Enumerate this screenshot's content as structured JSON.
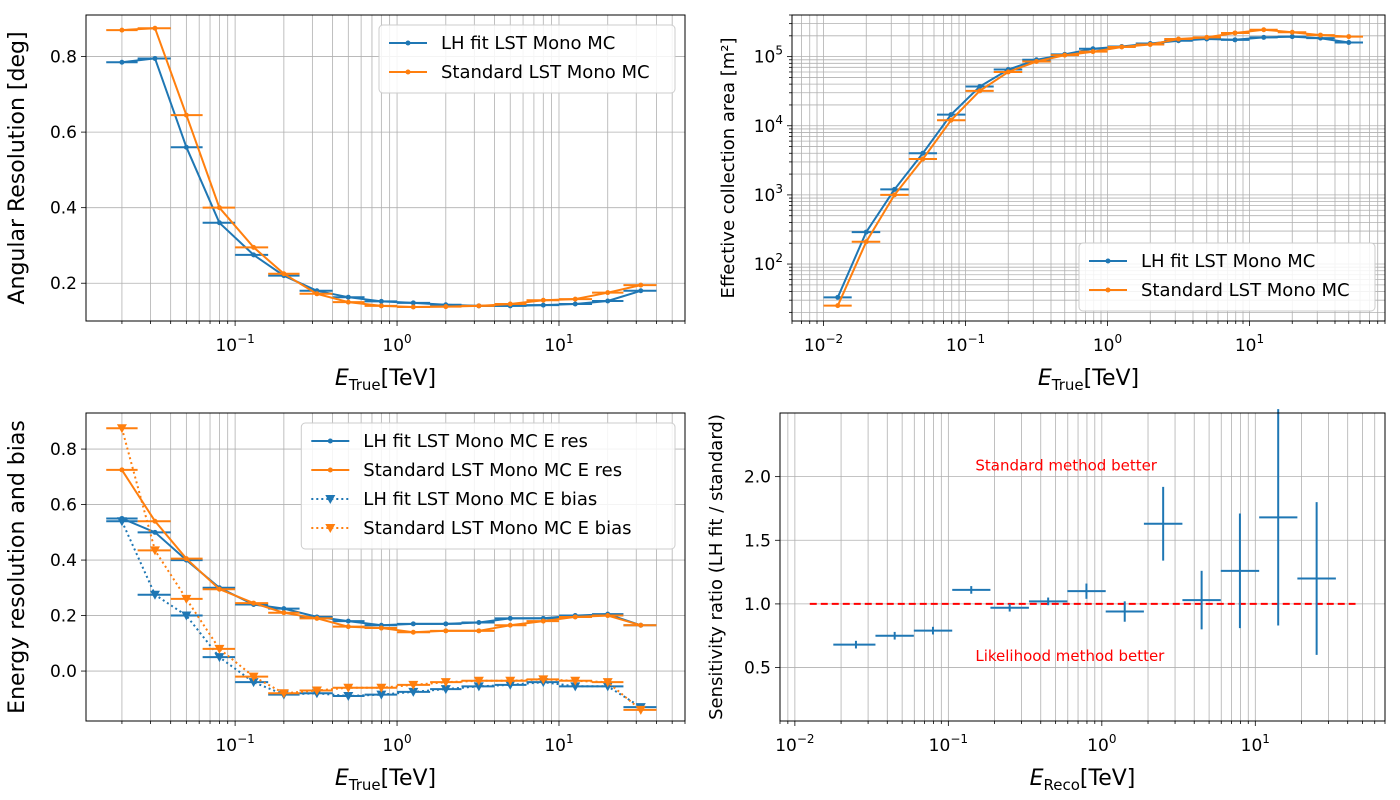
{
  "colors": {
    "lh": "#1f77b4",
    "std": "#ff7f0e",
    "ref": "#ff0000",
    "grid": "#b0b0b0"
  },
  "chart_data": [
    {
      "id": "angres",
      "type": "line",
      "xscale": "log",
      "yscale": "linear",
      "xlim": [
        0.012,
        60
      ],
      "ylim": [
        0.1,
        0.91
      ],
      "xlabel": {
        "main": "E",
        "sub": "True",
        "unit": "[TeV]"
      },
      "ylabel": "Angular Resolution [deg]",
      "xticks": [
        {
          "v": 0.1,
          "b": "10",
          "e": "−1"
        },
        {
          "v": 1,
          "b": "10",
          "e": "0"
        },
        {
          "v": 10,
          "b": "10",
          "e": "1"
        }
      ],
      "yticks": [
        {
          "v": 0.2,
          "t": "0.2"
        },
        {
          "v": 0.4,
          "t": "0.4"
        },
        {
          "v": 0.6,
          "t": "0.6"
        },
        {
          "v": 0.8,
          "t": "0.8"
        }
      ],
      "legend": {
        "position": "top-right"
      },
      "series": [
        {
          "name": "LH fit LST Mono MC",
          "color": "lh",
          "marker": "o",
          "style": "solid",
          "x": [
            0.02,
            0.032,
            0.05,
            0.08,
            0.13,
            0.2,
            0.32,
            0.5,
            0.8,
            1.26,
            2.0,
            3.2,
            5.0,
            8.0,
            12.6,
            20,
            32
          ],
          "xlo": [
            0.016,
            0.025,
            0.04,
            0.063,
            0.1,
            0.16,
            0.25,
            0.4,
            0.63,
            1.0,
            1.6,
            2.5,
            4.0,
            6.3,
            10,
            16,
            25
          ],
          "xhi": [
            0.025,
            0.04,
            0.063,
            0.1,
            0.16,
            0.25,
            0.4,
            0.63,
            1.0,
            1.6,
            2.5,
            4.0,
            6.3,
            10,
            16,
            25,
            40
          ],
          "y": [
            0.785,
            0.795,
            0.56,
            0.36,
            0.275,
            0.22,
            0.18,
            0.163,
            0.152,
            0.148,
            0.143,
            0.14,
            0.14,
            0.142,
            0.145,
            0.153,
            0.18
          ]
        },
        {
          "name": "Standard LST Mono MC",
          "color": "std",
          "marker": "o",
          "style": "solid",
          "x": [
            0.02,
            0.032,
            0.05,
            0.08,
            0.13,
            0.2,
            0.32,
            0.5,
            0.8,
            1.26,
            2.0,
            3.2,
            5.0,
            8.0,
            12.6,
            20,
            32
          ],
          "xlo": [
            0.016,
            0.025,
            0.04,
            0.063,
            0.1,
            0.16,
            0.25,
            0.4,
            0.63,
            1.0,
            1.6,
            2.5,
            4.0,
            6.3,
            10,
            16,
            25
          ],
          "xhi": [
            0.025,
            0.04,
            0.063,
            0.1,
            0.16,
            0.25,
            0.4,
            0.63,
            1.0,
            1.6,
            2.5,
            4.0,
            6.3,
            10,
            16,
            25,
            40
          ],
          "y": [
            0.87,
            0.875,
            0.645,
            0.4,
            0.295,
            0.225,
            0.172,
            0.15,
            0.14,
            0.137,
            0.138,
            0.14,
            0.145,
            0.155,
            0.158,
            0.175,
            0.195
          ]
        }
      ]
    },
    {
      "id": "effarea",
      "type": "line",
      "xscale": "log",
      "yscale": "log",
      "xlim": [
        0.006,
        90
      ],
      "ylim": [
        15,
        400000
      ],
      "xlabel": {
        "main": "E",
        "sub": "True",
        "unit": "[TeV]"
      },
      "ylabel": "Effective collection area [m²]",
      "xticks": [
        {
          "v": 0.01,
          "b": "10",
          "e": "−2"
        },
        {
          "v": 0.1,
          "b": "10",
          "e": "−1"
        },
        {
          "v": 1,
          "b": "10",
          "e": "0"
        },
        {
          "v": 10,
          "b": "10",
          "e": "1"
        }
      ],
      "yticks": [
        {
          "v": 100,
          "b": "10",
          "e": "2"
        },
        {
          "v": 1000,
          "b": "10",
          "e": "3"
        },
        {
          "v": 10000,
          "b": "10",
          "e": "4"
        },
        {
          "v": 100000,
          "b": "10",
          "e": "5"
        }
      ],
      "legend": {
        "position": "bottom-right"
      },
      "series": [
        {
          "name": "LH fit LST Mono MC",
          "color": "lh",
          "marker": "o",
          "style": "solid",
          "x": [
            0.0126,
            0.02,
            0.0316,
            0.05,
            0.079,
            0.126,
            0.2,
            0.316,
            0.5,
            0.79,
            1.26,
            2.0,
            3.16,
            5.0,
            7.9,
            12.6,
            20,
            31.6,
            50
          ],
          "xlo": [
            0.01,
            0.0158,
            0.0251,
            0.0398,
            0.063,
            0.1,
            0.158,
            0.251,
            0.398,
            0.63,
            1.0,
            1.58,
            2.51,
            3.98,
            6.3,
            10,
            15.8,
            25.1,
            39.8
          ],
          "xhi": [
            0.0158,
            0.0251,
            0.0398,
            0.063,
            0.1,
            0.158,
            0.251,
            0.398,
            0.63,
            1.0,
            1.58,
            2.51,
            3.98,
            6.3,
            10,
            15.8,
            25.1,
            39.8,
            63
          ],
          "y": [
            33,
            290,
            1200,
            4000,
            14500,
            37000,
            65000,
            90000,
            108000,
            130000,
            140000,
            155000,
            170000,
            180000,
            175000,
            190000,
            195000,
            185000,
            160000
          ]
        },
        {
          "name": "Standard LST Mono MC",
          "color": "std",
          "marker": "o",
          "style": "solid",
          "x": [
            0.0126,
            0.02,
            0.0316,
            0.05,
            0.079,
            0.126,
            0.2,
            0.316,
            0.5,
            0.79,
            1.26,
            2.0,
            3.16,
            5.0,
            7.9,
            12.6,
            20,
            31.6,
            50
          ],
          "xlo": [
            0.01,
            0.0158,
            0.0251,
            0.0398,
            0.063,
            0.1,
            0.158,
            0.251,
            0.398,
            0.63,
            1.0,
            1.58,
            2.51,
            3.98,
            6.3,
            10,
            15.8,
            25.1,
            39.8
          ],
          "xhi": [
            0.0158,
            0.0251,
            0.0398,
            0.063,
            0.1,
            0.158,
            0.251,
            0.398,
            0.63,
            1.0,
            1.58,
            2.51,
            3.98,
            6.3,
            10,
            15.8,
            25.1,
            39.8,
            63
          ],
          "y": [
            25,
            210,
            1000,
            3300,
            12000,
            32000,
            60000,
            85000,
            105000,
            118000,
            138000,
            150000,
            180000,
            190000,
            220000,
            245000,
            225000,
            205000,
            195000
          ]
        }
      ]
    },
    {
      "id": "eres",
      "type": "line",
      "xscale": "log",
      "yscale": "linear",
      "xlim": [
        0.012,
        60
      ],
      "ylim": [
        -0.18,
        0.93
      ],
      "xlabel": {
        "main": "E",
        "sub": "True",
        "unit": "[TeV]"
      },
      "ylabel": "Energy resolution and bias",
      "xticks": [
        {
          "v": 0.1,
          "b": "10",
          "e": "−1"
        },
        {
          "v": 1,
          "b": "10",
          "e": "0"
        },
        {
          "v": 10,
          "b": "10",
          "e": "1"
        }
      ],
      "yticks": [
        {
          "v": 0.0,
          "t": "0.0"
        },
        {
          "v": 0.2,
          "t": "0.2"
        },
        {
          "v": 0.4,
          "t": "0.4"
        },
        {
          "v": 0.6,
          "t": "0.6"
        },
        {
          "v": 0.8,
          "t": "0.8"
        }
      ],
      "legend": {
        "position": "top-right"
      },
      "series": [
        {
          "name": "LH fit LST Mono MC E res",
          "color": "lh",
          "marker": "o",
          "style": "solid",
          "x": [
            0.02,
            0.032,
            0.05,
            0.08,
            0.13,
            0.2,
            0.32,
            0.5,
            0.8,
            1.26,
            2.0,
            3.2,
            5.0,
            8.0,
            12.6,
            20,
            32
          ],
          "xlo": [
            0.016,
            0.025,
            0.04,
            0.063,
            0.1,
            0.16,
            0.25,
            0.4,
            0.63,
            1.0,
            1.6,
            2.5,
            4.0,
            6.3,
            10,
            16,
            25
          ],
          "xhi": [
            0.025,
            0.04,
            0.063,
            0.1,
            0.16,
            0.25,
            0.4,
            0.63,
            1.0,
            1.6,
            2.5,
            4.0,
            6.3,
            10,
            16,
            25,
            40
          ],
          "y": [
            0.55,
            0.5,
            0.4,
            0.3,
            0.24,
            0.225,
            0.195,
            0.18,
            0.165,
            0.17,
            0.17,
            0.175,
            0.19,
            0.19,
            0.2,
            0.205,
            0.165
          ]
        },
        {
          "name": "Standard LST Mono MC E res",
          "color": "std",
          "marker": "o",
          "style": "solid",
          "x": [
            0.02,
            0.032,
            0.05,
            0.08,
            0.13,
            0.2,
            0.32,
            0.5,
            0.8,
            1.26,
            2.0,
            3.2,
            5.0,
            8.0,
            12.6,
            20,
            32
          ],
          "xlo": [
            0.016,
            0.025,
            0.04,
            0.063,
            0.1,
            0.16,
            0.25,
            0.4,
            0.63,
            1.0,
            1.6,
            2.5,
            4.0,
            6.3,
            10,
            16,
            25
          ],
          "xhi": [
            0.025,
            0.04,
            0.063,
            0.1,
            0.16,
            0.25,
            0.4,
            0.63,
            1.0,
            1.6,
            2.5,
            4.0,
            6.3,
            10,
            16,
            25,
            40
          ],
          "y": [
            0.725,
            0.54,
            0.405,
            0.295,
            0.245,
            0.21,
            0.19,
            0.16,
            0.155,
            0.14,
            0.145,
            0.145,
            0.165,
            0.18,
            0.195,
            0.2,
            0.165
          ]
        },
        {
          "name": "LH fit LST Mono MC E bias",
          "color": "lh",
          "marker": "v",
          "style": "dotted",
          "x": [
            0.02,
            0.032,
            0.05,
            0.08,
            0.13,
            0.2,
            0.32,
            0.5,
            0.8,
            1.26,
            2.0,
            3.2,
            5.0,
            8.0,
            12.6,
            20,
            32
          ],
          "xlo": [
            0.016,
            0.025,
            0.04,
            0.063,
            0.1,
            0.16,
            0.25,
            0.4,
            0.63,
            1.0,
            1.6,
            2.5,
            4.0,
            6.3,
            10,
            16,
            25
          ],
          "xhi": [
            0.025,
            0.04,
            0.063,
            0.1,
            0.16,
            0.25,
            0.4,
            0.63,
            1.0,
            1.6,
            2.5,
            4.0,
            6.3,
            10,
            16,
            25,
            40
          ],
          "y": [
            0.54,
            0.275,
            0.2,
            0.05,
            -0.04,
            -0.085,
            -0.08,
            -0.09,
            -0.085,
            -0.075,
            -0.065,
            -0.055,
            -0.05,
            -0.04,
            -0.055,
            -0.055,
            -0.13
          ]
        },
        {
          "name": "Standard LST Mono MC E bias",
          "color": "std",
          "marker": "v",
          "style": "dotted",
          "x": [
            0.02,
            0.032,
            0.05,
            0.08,
            0.13,
            0.2,
            0.32,
            0.5,
            0.8,
            1.26,
            2.0,
            3.2,
            5.0,
            8.0,
            12.6,
            20,
            32
          ],
          "xlo": [
            0.016,
            0.025,
            0.04,
            0.063,
            0.1,
            0.16,
            0.25,
            0.4,
            0.63,
            1.0,
            1.6,
            2.5,
            4.0,
            6.3,
            10,
            16,
            25
          ],
          "xhi": [
            0.025,
            0.04,
            0.063,
            0.1,
            0.16,
            0.25,
            0.4,
            0.63,
            1.0,
            1.6,
            2.5,
            4.0,
            6.3,
            10,
            16,
            25,
            40
          ],
          "y": [
            0.875,
            0.435,
            0.26,
            0.08,
            -0.02,
            -0.08,
            -0.07,
            -0.06,
            -0.06,
            -0.05,
            -0.04,
            -0.035,
            -0.035,
            -0.03,
            -0.035,
            -0.04,
            -0.14
          ]
        }
      ]
    },
    {
      "id": "sens",
      "type": "errorbar",
      "xscale": "log",
      "yscale": "linear",
      "xlim": [
        0.008,
        70
      ],
      "ylim": [
        0.08,
        2.5
      ],
      "xlabel": {
        "main": "E",
        "sub": "Reco",
        "unit": "[TeV]"
      },
      "ylabel": "Sensitivity ratio (LH fit / standard)",
      "xticks": [
        {
          "v": 0.01,
          "b": "10",
          "e": "−2"
        },
        {
          "v": 0.1,
          "b": "10",
          "e": "−1"
        },
        {
          "v": 1,
          "b": "10",
          "e": "0"
        },
        {
          "v": 10,
          "b": "10",
          "e": "1"
        }
      ],
      "yticks": [
        {
          "v": 0.5,
          "t": "0.5"
        },
        {
          "v": 1.0,
          "t": "1.0"
        },
        {
          "v": 1.5,
          "t": "1.5"
        },
        {
          "v": 2.0,
          "t": "2.0"
        }
      ],
      "reference_line": {
        "y": 1.0,
        "xrange": [
          0.0125,
          45
        ],
        "style": "dashed",
        "color": "ref"
      },
      "annotations": [
        {
          "text": "Standard method better",
          "x": 0.15,
          "y": 2.05
        },
        {
          "text": "Likelihood method better",
          "x": 0.15,
          "y": 0.55
        }
      ],
      "series": [
        {
          "name": "Sensitivity ratio",
          "color": "lh",
          "x": [
            0.025,
            0.0447,
            0.0794,
            0.141,
            0.251,
            0.447,
            0.794,
            1.41,
            2.51,
            4.47,
            7.94,
            14.1,
            25.1
          ],
          "xlo": [
            0.0178,
            0.0335,
            0.0596,
            0.106,
            0.188,
            0.335,
            0.596,
            1.06,
            1.88,
            3.35,
            5.96,
            10.6,
            18.8
          ],
          "xhi": [
            0.0335,
            0.0596,
            0.106,
            0.188,
            0.335,
            0.596,
            1.06,
            1.88,
            3.35,
            5.96,
            10.6,
            18.8,
            33.5
          ],
          "y": [
            0.68,
            0.75,
            0.79,
            1.11,
            0.97,
            1.02,
            1.1,
            0.94,
            1.63,
            1.03,
            1.26,
            1.68,
            1.2
          ],
          "yerr": [
            0.03,
            0.03,
            0.03,
            0.03,
            0.03,
            0.03,
            0.06,
            0.08,
            0.29,
            0.23,
            0.45,
            0.85,
            0.6
          ]
        }
      ]
    }
  ]
}
